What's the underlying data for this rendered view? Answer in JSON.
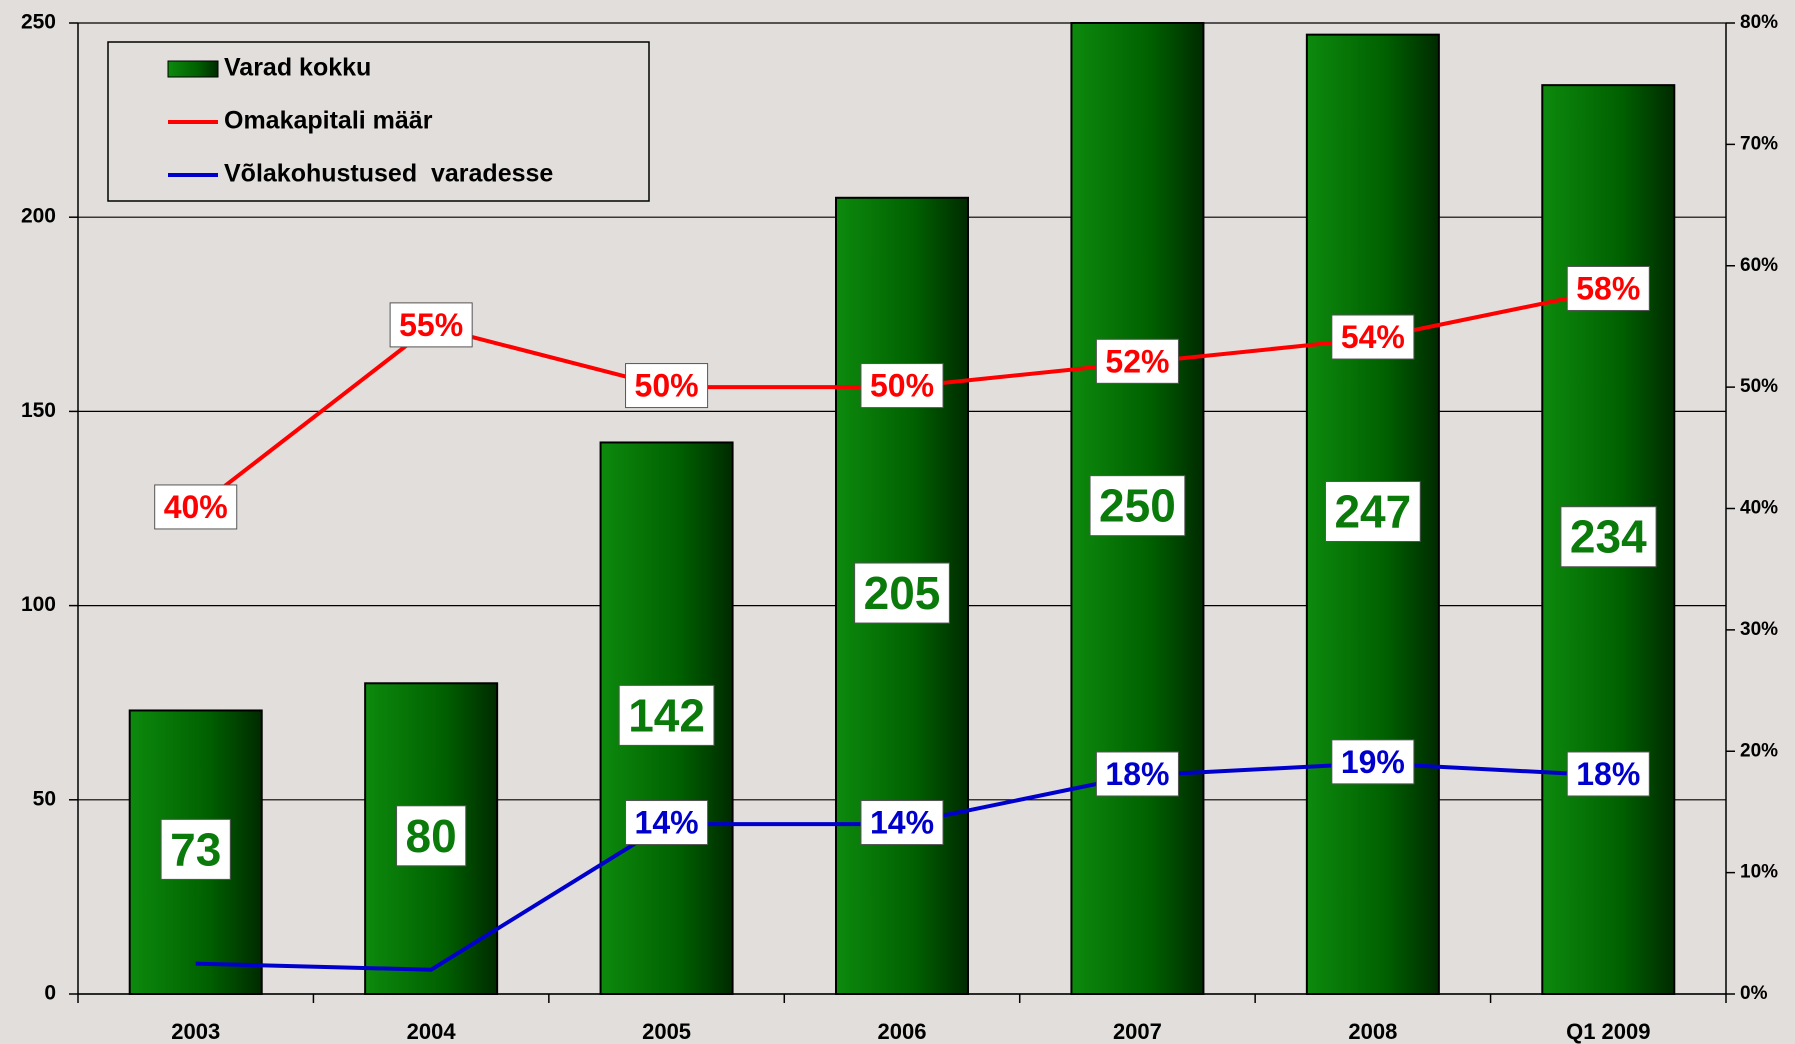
{
  "chart_data": {
    "type": "bar",
    "categories": [
      "2003",
      "2004",
      "2005",
      "2006",
      "2007",
      "2008",
      "Q1 2009"
    ],
    "series": [
      {
        "name": "Varad kokku",
        "type": "bar",
        "color": "#0a7a0a",
        "values": [
          73,
          80,
          142,
          205,
          250,
          247,
          234
        ]
      },
      {
        "name": "Omakapitali määr",
        "type": "line",
        "axis": "y2",
        "color": "#ff0000",
        "values": [
          40,
          55,
          50,
          50,
          52,
          54,
          58
        ],
        "value_labels": [
          "40%",
          "55%",
          "50%",
          "50%",
          "52%",
          "54%",
          "58%"
        ]
      },
      {
        "name": "Võlakohustused  varadesse",
        "type": "line",
        "axis": "y2",
        "color": "#0000cc",
        "values": [
          2.5,
          2,
          14,
          14,
          18,
          19,
          18
        ],
        "value_labels": [
          null,
          null,
          "14%",
          "14%",
          "18%",
          "19%",
          "18%"
        ]
      }
    ],
    "ylim": [
      0,
      250
    ],
    "yticks": [
      0,
      50,
      100,
      150,
      200,
      250
    ],
    "y2lim": [
      0,
      80
    ],
    "y2ticks": [
      {
        "value": 0,
        "label": "0%"
      },
      {
        "value": 10,
        "label": "10%"
      },
      {
        "value": 20,
        "label": "20%"
      },
      {
        "value": 30,
        "label": "30%"
      },
      {
        "value": 40,
        "label": "40%"
      },
      {
        "value": 50,
        "label": "50%"
      },
      {
        "value": 60,
        "label": "60%"
      },
      {
        "value": 70,
        "label": "70%"
      },
      {
        "value": 80,
        "label": "80%"
      }
    ],
    "grid": true
  }
}
